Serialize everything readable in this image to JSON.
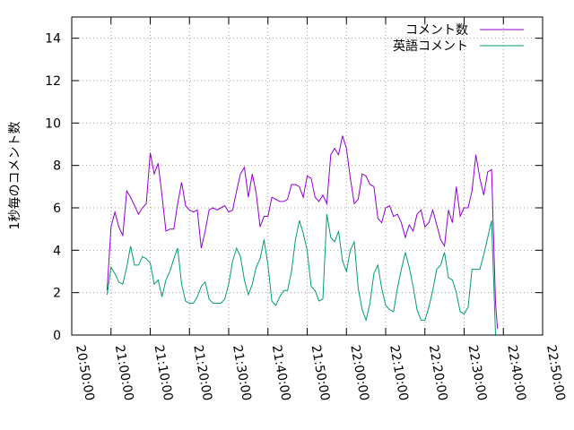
{
  "chart_data": {
    "type": "line",
    "xlabel": "",
    "ylabel": "1秒毎のコメント数",
    "ylim": [
      0,
      15
    ],
    "yticks": [
      0,
      2,
      4,
      6,
      8,
      10,
      12,
      14
    ],
    "xlim": [
      "20:50:00",
      "22:50:00"
    ],
    "xticks": [
      "20:50:00",
      "21:00:00",
      "21:10:00",
      "21:20:00",
      "21:30:00",
      "21:40:00",
      "21:50:00",
      "22:00:00",
      "22:10:00",
      "22:20:00",
      "22:30:00",
      "22:40:00",
      "22:50:00"
    ],
    "grid": true,
    "legend_position": "top-right",
    "series": [
      {
        "name": "コメント数",
        "color": "#9400d3",
        "points": [
          [
            "20:59:00",
            2.1
          ],
          [
            "21:00:00",
            5.1
          ],
          [
            "21:01:00",
            5.8
          ],
          [
            "21:02:00",
            5.1
          ],
          [
            "21:03:00",
            4.7
          ],
          [
            "21:04:00",
            6.8
          ],
          [
            "21:05:00",
            6.5
          ],
          [
            "21:06:00",
            6.1
          ],
          [
            "21:07:00",
            5.7
          ],
          [
            "21:08:00",
            6.0
          ],
          [
            "21:09:00",
            6.2
          ],
          [
            "21:10:00",
            8.6
          ],
          [
            "21:11:00",
            7.6
          ],
          [
            "21:12:00",
            8.1
          ],
          [
            "21:13:00",
            6.6
          ],
          [
            "21:14:00",
            4.9
          ],
          [
            "21:15:00",
            5.0
          ],
          [
            "21:16:00",
            5.0
          ],
          [
            "21:17:00",
            6.2
          ],
          [
            "21:18:00",
            7.2
          ],
          [
            "21:19:00",
            6.1
          ],
          [
            "21:20:00",
            5.9
          ],
          [
            "21:21:00",
            5.8
          ],
          [
            "21:22:00",
            5.9
          ],
          [
            "21:23:00",
            4.1
          ],
          [
            "21:24:00",
            4.9
          ],
          [
            "21:25:00",
            5.9
          ],
          [
            "21:26:00",
            6.0
          ],
          [
            "21:27:00",
            5.9
          ],
          [
            "21:28:00",
            6.0
          ],
          [
            "21:29:00",
            6.1
          ],
          [
            "21:30:00",
            5.8
          ],
          [
            "21:31:00",
            5.9
          ],
          [
            "21:32:00",
            6.8
          ],
          [
            "21:33:00",
            7.6
          ],
          [
            "21:34:00",
            7.9
          ],
          [
            "21:35:00",
            6.5
          ],
          [
            "21:36:00",
            7.6
          ],
          [
            "21:37:00",
            6.7
          ],
          [
            "21:38:00",
            5.1
          ],
          [
            "21:39:00",
            5.6
          ],
          [
            "21:40:00",
            5.6
          ],
          [
            "21:41:00",
            6.5
          ],
          [
            "21:42:00",
            6.4
          ],
          [
            "21:43:00",
            6.3
          ],
          [
            "21:44:00",
            6.3
          ],
          [
            "21:45:00",
            6.4
          ],
          [
            "21:46:00",
            7.1
          ],
          [
            "21:47:00",
            7.1
          ],
          [
            "21:48:00",
            7.0
          ],
          [
            "21:49:00",
            6.5
          ],
          [
            "21:50:00",
            7.5
          ],
          [
            "21:51:00",
            7.4
          ],
          [
            "21:52:00",
            6.5
          ],
          [
            "21:53:00",
            6.3
          ],
          [
            "21:54:00",
            6.6
          ],
          [
            "21:55:00",
            6.2
          ],
          [
            "21:56:00",
            8.5
          ],
          [
            "21:57:00",
            8.8
          ],
          [
            "21:58:00",
            8.5
          ],
          [
            "21:59:00",
            9.4
          ],
          [
            "22:00:00",
            8.8
          ],
          [
            "22:01:00",
            7.4
          ],
          [
            "22:02:00",
            6.2
          ],
          [
            "22:03:00",
            6.4
          ],
          [
            "22:04:00",
            7.6
          ],
          [
            "22:05:00",
            7.5
          ],
          [
            "22:06:00",
            7.1
          ],
          [
            "22:07:00",
            7.0
          ],
          [
            "22:08:00",
            5.5
          ],
          [
            "22:09:00",
            5.3
          ],
          [
            "22:10:00",
            6.0
          ],
          [
            "22:11:00",
            6.1
          ],
          [
            "22:12:00",
            5.6
          ],
          [
            "22:13:00",
            5.7
          ],
          [
            "22:14:00",
            5.3
          ],
          [
            "22:15:00",
            4.6
          ],
          [
            "22:16:00",
            5.2
          ],
          [
            "22:17:00",
            4.9
          ],
          [
            "22:18:00",
            5.7
          ],
          [
            "22:19:00",
            5.9
          ],
          [
            "22:20:00",
            5.1
          ],
          [
            "22:21:00",
            5.3
          ],
          [
            "22:22:00",
            5.9
          ],
          [
            "22:23:00",
            5.2
          ],
          [
            "22:24:00",
            4.5
          ],
          [
            "22:25:00",
            4.2
          ],
          [
            "22:26:00",
            5.9
          ],
          [
            "22:27:00",
            5.3
          ],
          [
            "22:28:00",
            7.0
          ],
          [
            "22:29:00",
            5.6
          ],
          [
            "22:30:00",
            6.0
          ],
          [
            "22:31:00",
            6.0
          ],
          [
            "22:32:00",
            6.8
          ],
          [
            "22:33:00",
            8.5
          ],
          [
            "22:34:00",
            7.4
          ],
          [
            "22:35:00",
            6.6
          ],
          [
            "22:36:00",
            7.7
          ],
          [
            "22:37:00",
            7.8
          ],
          [
            "22:38:00",
            1.5
          ],
          [
            "22:38:30",
            0.3
          ]
        ]
      },
      {
        "name": "英語コメント",
        "color": "#009e73",
        "points": [
          [
            "20:59:00",
            1.9
          ],
          [
            "21:00:00",
            3.2
          ],
          [
            "21:01:00",
            2.9
          ],
          [
            "21:02:00",
            2.5
          ],
          [
            "21:03:00",
            2.4
          ],
          [
            "21:04:00",
            3.2
          ],
          [
            "21:05:00",
            4.2
          ],
          [
            "21:06:00",
            3.3
          ],
          [
            "21:07:00",
            3.3
          ],
          [
            "21:08:00",
            3.7
          ],
          [
            "21:09:00",
            3.6
          ],
          [
            "21:10:00",
            3.4
          ],
          [
            "21:11:00",
            2.4
          ],
          [
            "21:12:00",
            2.6
          ],
          [
            "21:13:00",
            1.8
          ],
          [
            "21:14:00",
            2.6
          ],
          [
            "21:15:00",
            3.0
          ],
          [
            "21:16:00",
            3.6
          ],
          [
            "21:17:00",
            4.1
          ],
          [
            "21:18:00",
            2.4
          ],
          [
            "21:19:00",
            1.6
          ],
          [
            "21:20:00",
            1.5
          ],
          [
            "21:21:00",
            1.5
          ],
          [
            "21:22:00",
            1.8
          ],
          [
            "21:23:00",
            2.3
          ],
          [
            "21:24:00",
            2.5
          ],
          [
            "21:25:00",
            1.7
          ],
          [
            "21:26:00",
            1.5
          ],
          [
            "21:27:00",
            1.5
          ],
          [
            "21:28:00",
            1.5
          ],
          [
            "21:29:00",
            1.7
          ],
          [
            "21:30:00",
            2.4
          ],
          [
            "21:31:00",
            3.5
          ],
          [
            "21:32:00",
            4.1
          ],
          [
            "21:33:00",
            3.7
          ],
          [
            "21:34:00",
            2.6
          ],
          [
            "21:35:00",
            1.9
          ],
          [
            "21:36:00",
            2.4
          ],
          [
            "21:37:00",
            3.2
          ],
          [
            "21:38:00",
            3.6
          ],
          [
            "21:39:00",
            4.5
          ],
          [
            "21:40:00",
            3.3
          ],
          [
            "21:41:00",
            1.6
          ],
          [
            "21:42:00",
            1.4
          ],
          [
            "21:43:00",
            1.8
          ],
          [
            "21:44:00",
            2.1
          ],
          [
            "21:45:00",
            2.1
          ],
          [
            "21:46:00",
            3.0
          ],
          [
            "21:47:00",
            4.5
          ],
          [
            "21:48:00",
            5.4
          ],
          [
            "21:49:00",
            4.8
          ],
          [
            "21:50:00",
            4.0
          ],
          [
            "21:51:00",
            2.3
          ],
          [
            "21:52:00",
            2.1
          ],
          [
            "21:53:00",
            1.6
          ],
          [
            "21:54:00",
            1.7
          ],
          [
            "21:55:00",
            5.7
          ],
          [
            "21:56:00",
            4.6
          ],
          [
            "21:57:00",
            4.4
          ],
          [
            "21:58:00",
            4.9
          ],
          [
            "21:59:00",
            3.5
          ],
          [
            "22:00:00",
            3.0
          ],
          [
            "22:01:00",
            4.0
          ],
          [
            "22:02:00",
            4.4
          ],
          [
            "22:03:00",
            2.2
          ],
          [
            "22:04:00",
            1.2
          ],
          [
            "22:05:00",
            0.7
          ],
          [
            "22:06:00",
            1.5
          ],
          [
            "22:07:00",
            2.9
          ],
          [
            "22:08:00",
            3.3
          ],
          [
            "22:09:00",
            2.2
          ],
          [
            "22:10:00",
            1.4
          ],
          [
            "22:11:00",
            1.2
          ],
          [
            "22:12:00",
            1.1
          ],
          [
            "22:13:00",
            2.2
          ],
          [
            "22:14:00",
            3.1
          ],
          [
            "22:15:00",
            3.9
          ],
          [
            "22:16:00",
            3.2
          ],
          [
            "22:17:00",
            2.3
          ],
          [
            "22:18:00",
            1.2
          ],
          [
            "22:19:00",
            0.7
          ],
          [
            "22:20:00",
            0.7
          ],
          [
            "22:21:00",
            1.3
          ],
          [
            "22:22:00",
            2.1
          ],
          [
            "22:23:00",
            3.1
          ],
          [
            "22:24:00",
            3.3
          ],
          [
            "22:25:00",
            3.9
          ],
          [
            "22:26:00",
            2.7
          ],
          [
            "22:27:00",
            2.6
          ],
          [
            "22:28:00",
            2.0
          ],
          [
            "22:29:00",
            1.1
          ],
          [
            "22:30:00",
            1.0
          ],
          [
            "22:31:00",
            1.3
          ],
          [
            "22:32:00",
            3.1
          ],
          [
            "22:33:00",
            3.1
          ],
          [
            "22:34:00",
            3.1
          ],
          [
            "22:35:00",
            3.8
          ],
          [
            "22:36:00",
            4.6
          ],
          [
            "22:37:00",
            5.4
          ],
          [
            "22:38:00",
            0.0
          ]
        ]
      }
    ]
  }
}
